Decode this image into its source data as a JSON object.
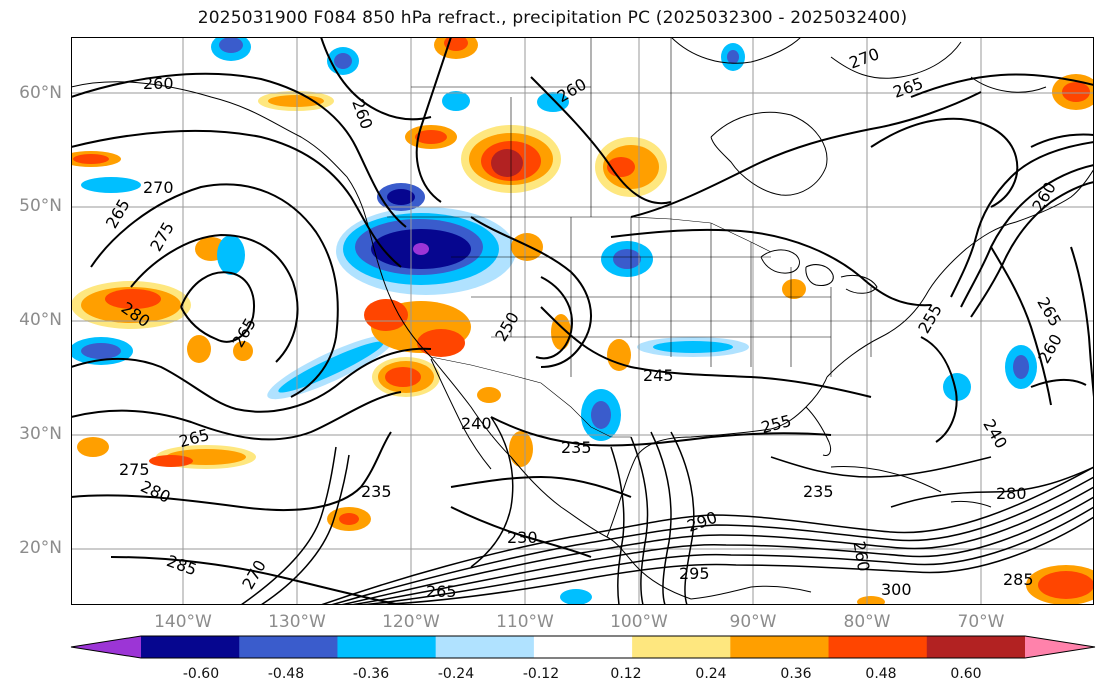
{
  "title": "2025031900 F084 850 hPa refract., precipitation PC (2025032300 - 2025032400)",
  "lat_labels": [
    "60°N",
    "50°N",
    "40°N",
    "30°N",
    "20°N"
  ],
  "lon_labels": [
    "140°W",
    "130°W",
    "120°W",
    "110°W",
    "100°W",
    "90°W",
    "80°W",
    "70°W"
  ],
  "contour_labels": [
    "260",
    "260",
    "260",
    "270",
    "265",
    "265",
    "270",
    "275",
    "280",
    "265",
    "250",
    "245",
    "255",
    "240",
    "235",
    "235",
    "230",
    "265",
    "275",
    "280",
    "285",
    "265",
    "270",
    "255",
    "235",
    "240",
    "260",
    "265",
    "280",
    "285",
    "290",
    "295",
    "300",
    "260",
    "260"
  ],
  "colorbar": {
    "ticks": [
      "-0.60",
      "-0.48",
      "-0.36",
      "-0.24",
      "-0.12",
      "0.12",
      "0.24",
      "0.36",
      "0.48",
      "0.60"
    ],
    "colors": [
      "#9c35d6",
      "#06068f",
      "#3a5ccc",
      "#00bfff",
      "#b0e2ff",
      "#ffffff",
      "#fee77f",
      "#ff9f00",
      "#ff4500",
      "#b22222",
      "#ff82ab"
    ]
  }
}
